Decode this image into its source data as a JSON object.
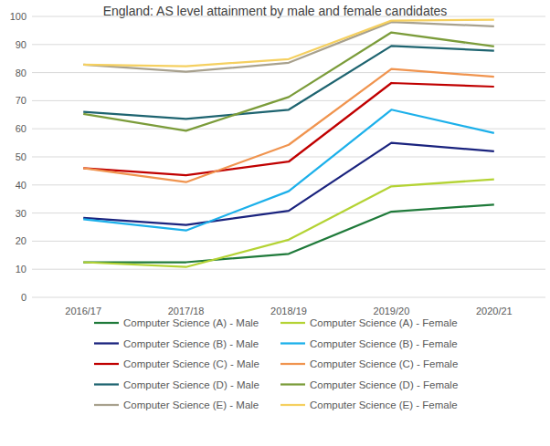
{
  "chart_data": {
    "type": "line",
    "title": "England: AS level attainment by male and female candidates",
    "categories": [
      "2016/17",
      "2017/18",
      "2018/19",
      "2019/20",
      "2020/21"
    ],
    "ylim": [
      0,
      100
    ],
    "yticks": [
      0,
      10,
      20,
      30,
      40,
      50,
      60,
      70,
      80,
      90,
      100
    ],
    "grid": true,
    "legend": "bottom",
    "series": [
      {
        "name": "Computer Science (A) - Male",
        "color": "#1f7a3a",
        "values": [
          12.5,
          12.5,
          15.5,
          30.5,
          33
        ]
      },
      {
        "name": "Computer Science (A) - Female",
        "color": "#b4d334",
        "values": [
          12.5,
          10.8,
          20.5,
          39.5,
          42
        ]
      },
      {
        "name": "Computer Science (B) - Male",
        "color": "#1a237e",
        "values": [
          28.3,
          25.8,
          30.8,
          55,
          52
        ]
      },
      {
        "name": "Computer Science (B) - Female",
        "color": "#1cb0ea",
        "values": [
          27.8,
          23.8,
          37.8,
          66.8,
          58.5
        ]
      },
      {
        "name": "Computer Science (C) - Male",
        "color": "#c00000",
        "values": [
          46,
          43.5,
          48.3,
          76.3,
          75
        ]
      },
      {
        "name": "Computer Science (C) - Female",
        "color": "#f0944f",
        "values": [
          46,
          41,
          54.3,
          81.3,
          78.5
        ]
      },
      {
        "name": "Computer Science (D) - Male",
        "color": "#1e6470",
        "values": [
          66,
          63.5,
          66.8,
          89.5,
          87.8
        ]
      },
      {
        "name": "Computer Science (D) - Female",
        "color": "#7b9c3a",
        "values": [
          65.3,
          59.3,
          71.3,
          94.3,
          89.3
        ]
      },
      {
        "name": "Computer Science (E) - Male",
        "color": "#a8a18e",
        "values": [
          82.8,
          80.3,
          83.5,
          98,
          96.5
        ]
      },
      {
        "name": "Computer Science (E) - Female",
        "color": "#f5d060",
        "values": [
          82.8,
          82.3,
          84.8,
          98.5,
          98.8
        ]
      }
    ]
  }
}
